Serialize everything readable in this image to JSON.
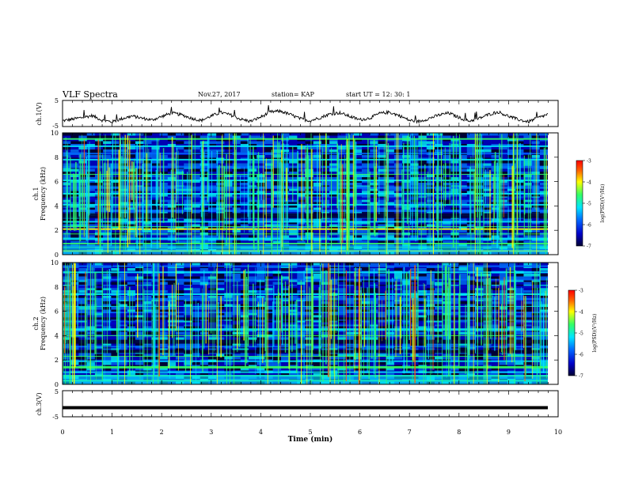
{
  "header": {
    "title": "VLF Spectra",
    "date": "Nov.27, 2017",
    "station": "station= KAP",
    "start_ut": "start UT =   12: 30: 1"
  },
  "chart_data": [
    {
      "type": "line",
      "name": "ch1-waveform",
      "ylabel": "ch.1(V)",
      "ylim": [
        -5,
        5
      ],
      "y_ticks": [
        "5",
        "-5"
      ],
      "xlim": [
        0,
        10
      ],
      "description_values": "noisy waveform oscillating roughly between -4 and 1 V",
      "y_samples": [
        -2.8,
        -2.2,
        -1.5,
        -0.8,
        -2.6,
        -3.2,
        -2.0,
        -1.0,
        -1.8,
        -2.5,
        -1.2,
        0.2,
        -0.5,
        -1.8,
        -2.7,
        -1.0,
        0.4,
        -0.6,
        -2.2,
        -3.0,
        -1.4,
        0.6,
        0.9,
        -0.4,
        -2.0,
        -2.8,
        -1.6,
        -0.2,
        0.3,
        -1.1,
        -2.4,
        -1.8,
        0.0,
        0.5,
        -0.8,
        -2.6,
        -3.1,
        -1.9,
        -0.6,
        0.2,
        -1.5,
        -2.9,
        -2.0,
        -0.4,
        0.6,
        -1.0,
        -2.3,
        -3.2,
        -1.7,
        -0.3
      ]
    },
    {
      "type": "heatmap",
      "name": "ch1-spectrogram",
      "ylabel": "ch.1\nFrequency (kHz)",
      "ylim": [
        0,
        10
      ],
      "y_ticks": [
        "0",
        "2",
        "4",
        "6",
        "8",
        "10"
      ],
      "xlim": [
        0,
        10
      ],
      "colorbar": {
        "label": "log(PSD)(V²/Hz)",
        "range": [
          -7,
          -3
        ],
        "ticks": [
          "-3",
          "-4",
          "-5",
          "-6",
          "-7"
        ]
      }
    },
    {
      "type": "heatmap",
      "name": "ch2-spectrogram",
      "ylabel": "ch.2\nFrequency (kHz)",
      "ylim": [
        0,
        10
      ],
      "y_ticks": [
        "0",
        "2",
        "4",
        "6",
        "8",
        "10"
      ],
      "xlim": [
        0,
        10
      ],
      "colorbar": {
        "label": "log(PSD)(V²/Hz)",
        "range": [
          -7,
          -3
        ],
        "ticks": [
          "-3",
          "-4",
          "-5",
          "-6",
          "-7"
        ]
      }
    },
    {
      "type": "line",
      "name": "ch3-waveform",
      "ylabel": "ch.3(V)",
      "ylim": [
        -5,
        5
      ],
      "y_ticks": [
        "5",
        "-5"
      ],
      "xlim": [
        0,
        10
      ],
      "xlabel": "Time (min)",
      "x_ticks": [
        "0",
        "1",
        "2",
        "3",
        "4",
        "5",
        "6",
        "7",
        "8",
        "9",
        "10"
      ],
      "constant_value": -1.5
    }
  ],
  "colors": {
    "background": "#ffffff",
    "axis": "#000000",
    "waveform": "#000000",
    "colormap": [
      "#000033",
      "#0000c8",
      "#0066ff",
      "#00e6ff",
      "#33ff66",
      "#ffff00",
      "#ff6600",
      "#ff0000"
    ]
  }
}
